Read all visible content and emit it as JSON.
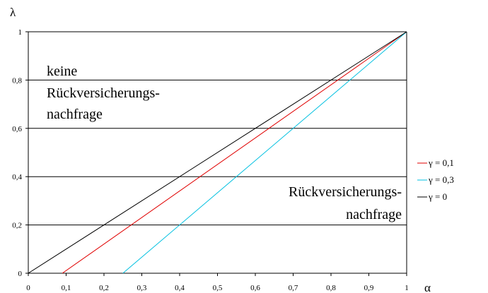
{
  "chart_data": {
    "type": "line",
    "xlabel": "α",
    "ylabel": "λ",
    "xlim": [
      0,
      1
    ],
    "ylim": [
      0,
      1
    ],
    "x_ticks": [
      "0",
      "0,1",
      "0,2",
      "0,3",
      "0,4",
      "0,5",
      "0,6",
      "0,7",
      "0,8",
      "0,9",
      "1"
    ],
    "y_ticks": [
      "0",
      "0,2",
      "0,4",
      "0,6",
      "0,8",
      "1"
    ],
    "grid": "horizontal",
    "legend_position": "right",
    "series": [
      {
        "name": "γ = 0,1",
        "color": "#e00000",
        "x": [
          0.09,
          1
        ],
        "y": [
          0,
          1
        ]
      },
      {
        "name": "γ = 0,3",
        "color": "#00c0e0",
        "x": [
          0.25,
          1
        ],
        "y": [
          0,
          1
        ]
      },
      {
        "name": "γ = 0",
        "color": "#000000",
        "x": [
          0,
          1
        ],
        "y": [
          0,
          1
        ]
      }
    ],
    "annotations": {
      "upper_line1": "keine",
      "upper_line2": "Rückversicherungs-",
      "upper_line3": "nachfrage",
      "lower_line1": "Rückversicherungs-",
      "lower_line2": "nachfrage"
    }
  }
}
